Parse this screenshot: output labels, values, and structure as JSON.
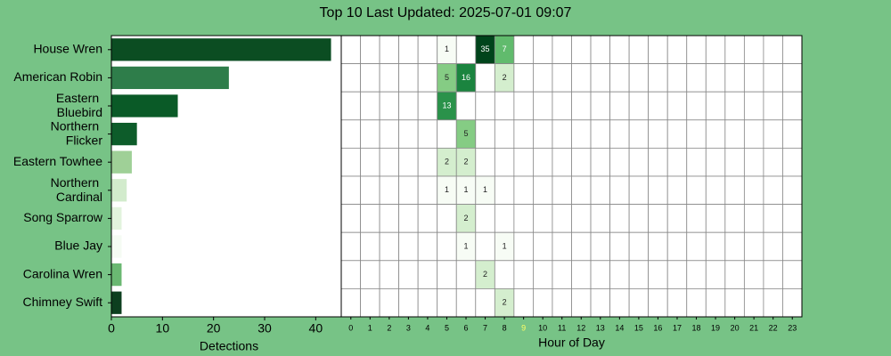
{
  "title": "Top 10 Last Updated: 2025-07-01 09:07",
  "chart_data": [
    {
      "type": "hbar",
      "categories": [
        "House Wren",
        "American Robin",
        "Eastern Bluebird",
        "Northern Flicker",
        "Eastern Towhee",
        "Northern Cardinal",
        "Song Sparrow",
        "Blue Jay",
        "Carolina Wren",
        "Chimney Swift"
      ],
      "values": [
        43,
        23,
        13,
        5,
        4,
        3,
        2,
        2,
        2,
        2
      ],
      "colors": [
        "#0b4d22",
        "#2e7d4a",
        "#0a5a27",
        "#0d5c2a",
        "#9fd097",
        "#d2ebcc",
        "#e2f3dd",
        "#f5fbf3",
        "#6ab872",
        "#0d3f1f"
      ],
      "xlabel": "Detections",
      "xlim": [
        0,
        45
      ],
      "xticks": [
        0,
        10,
        20,
        30,
        40
      ]
    },
    {
      "type": "heatmap",
      "xlabel": "Hour of Day",
      "categories": [
        0,
        1,
        2,
        3,
        4,
        5,
        6,
        7,
        8,
        9,
        10,
        11,
        12,
        13,
        14,
        15,
        16,
        17,
        18,
        19,
        20,
        21,
        22,
        23
      ],
      "highlight_category": 9,
      "highlight_color": "#ffff66",
      "colormap": "Greens",
      "norm": "log",
      "values": [
        [
          null,
          null,
          null,
          null,
          null,
          1,
          null,
          35,
          7,
          null,
          null,
          null,
          null,
          null,
          null,
          null,
          null,
          null,
          null,
          null,
          null,
          null,
          null,
          null
        ],
        [
          null,
          null,
          null,
          null,
          null,
          5,
          16,
          null,
          2,
          null,
          null,
          null,
          null,
          null,
          null,
          null,
          null,
          null,
          null,
          null,
          null,
          null,
          null,
          null
        ],
        [
          null,
          null,
          null,
          null,
          null,
          13,
          null,
          null,
          null,
          null,
          null,
          null,
          null,
          null,
          null,
          null,
          null,
          null,
          null,
          null,
          null,
          null,
          null,
          null
        ],
        [
          null,
          null,
          null,
          null,
          null,
          null,
          5,
          null,
          null,
          null,
          null,
          null,
          null,
          null,
          null,
          null,
          null,
          null,
          null,
          null,
          null,
          null,
          null,
          null
        ],
        [
          null,
          null,
          null,
          null,
          null,
          2,
          2,
          null,
          null,
          null,
          null,
          null,
          null,
          null,
          null,
          null,
          null,
          null,
          null,
          null,
          null,
          null,
          null,
          null
        ],
        [
          null,
          null,
          null,
          null,
          null,
          1,
          1,
          1,
          null,
          null,
          null,
          null,
          null,
          null,
          null,
          null,
          null,
          null,
          null,
          null,
          null,
          null,
          null,
          null
        ],
        [
          null,
          null,
          null,
          null,
          null,
          null,
          2,
          null,
          null,
          null,
          null,
          null,
          null,
          null,
          null,
          null,
          null,
          null,
          null,
          null,
          null,
          null,
          null,
          null
        ],
        [
          null,
          null,
          null,
          null,
          null,
          null,
          1,
          null,
          1,
          null,
          null,
          null,
          null,
          null,
          null,
          null,
          null,
          null,
          null,
          null,
          null,
          null,
          null,
          null
        ],
        [
          null,
          null,
          null,
          null,
          null,
          null,
          null,
          2,
          null,
          null,
          null,
          null,
          null,
          null,
          null,
          null,
          null,
          null,
          null,
          null,
          null,
          null,
          null,
          null
        ],
        [
          null,
          null,
          null,
          null,
          null,
          null,
          null,
          null,
          2,
          null,
          null,
          null,
          null,
          null,
          null,
          null,
          null,
          null,
          null,
          null,
          null,
          null,
          null,
          null
        ]
      ]
    }
  ]
}
